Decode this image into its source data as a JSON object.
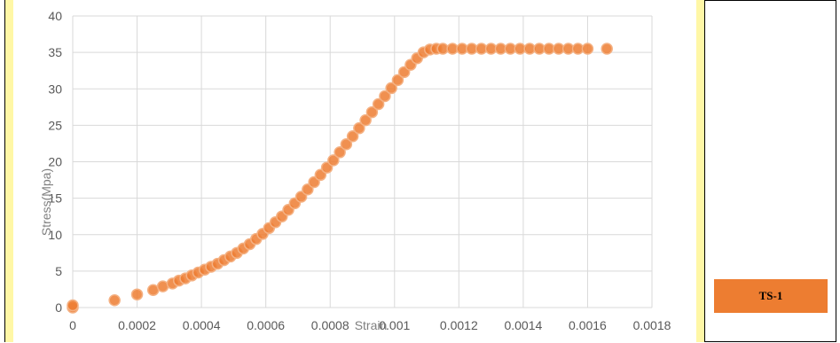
{
  "chart_data": {
    "type": "scatter",
    "xlabel": "Strain",
    "ylabel": "Stress(Mpa)",
    "xlim": [
      0,
      0.0018
    ],
    "ylim": [
      0,
      40
    ],
    "x_ticks": [
      "0",
      "0.0002",
      "0.0004",
      "0.0006",
      "0.0008",
      "0.001",
      "0.0012",
      "0.0014",
      "0.0016",
      "0.0018"
    ],
    "y_ticks": [
      "0",
      "5",
      "10",
      "15",
      "20",
      "25",
      "30",
      "35",
      "40"
    ],
    "grid": true,
    "marker_color": "#ed7d31",
    "series": [
      {
        "name": "TS-1",
        "points": [
          [
            0.0,
            0.0
          ],
          [
            0.0,
            0.3
          ],
          [
            0.00013,
            1.0
          ],
          [
            0.0002,
            1.8
          ],
          [
            0.00025,
            2.4
          ],
          [
            0.00028,
            2.9
          ],
          [
            0.00031,
            3.3
          ],
          [
            0.00033,
            3.7
          ],
          [
            0.00035,
            4.0
          ],
          [
            0.00037,
            4.4
          ],
          [
            0.00039,
            4.8
          ],
          [
            0.00041,
            5.2
          ],
          [
            0.00043,
            5.6
          ],
          [
            0.00045,
            6.0
          ],
          [
            0.00047,
            6.5
          ],
          [
            0.00049,
            7.0
          ],
          [
            0.00051,
            7.5
          ],
          [
            0.00053,
            8.1
          ],
          [
            0.00055,
            8.7
          ],
          [
            0.00057,
            9.4
          ],
          [
            0.00059,
            10.1
          ],
          [
            0.00061,
            10.9
          ],
          [
            0.00063,
            11.7
          ],
          [
            0.00065,
            12.5
          ],
          [
            0.00067,
            13.4
          ],
          [
            0.00069,
            14.3
          ],
          [
            0.00071,
            15.2
          ],
          [
            0.00073,
            16.2
          ],
          [
            0.00075,
            17.2
          ],
          [
            0.00077,
            18.2
          ],
          [
            0.00079,
            19.2
          ],
          [
            0.00081,
            20.2
          ],
          [
            0.00083,
            21.3
          ],
          [
            0.00085,
            22.4
          ],
          [
            0.00087,
            23.5
          ],
          [
            0.00089,
            24.6
          ],
          [
            0.00091,
            25.7
          ],
          [
            0.00093,
            26.8
          ],
          [
            0.00095,
            27.9
          ],
          [
            0.00097,
            29.0
          ],
          [
            0.00099,
            30.1
          ],
          [
            0.00101,
            31.2
          ],
          [
            0.00103,
            32.3
          ],
          [
            0.00105,
            33.3
          ],
          [
            0.00107,
            34.2
          ],
          [
            0.00109,
            35.0
          ],
          [
            0.00111,
            35.4
          ],
          [
            0.00113,
            35.5
          ],
          [
            0.00115,
            35.5
          ],
          [
            0.00118,
            35.5
          ],
          [
            0.00121,
            35.5
          ],
          [
            0.00124,
            35.5
          ],
          [
            0.00127,
            35.5
          ],
          [
            0.0013,
            35.5
          ],
          [
            0.00133,
            35.5
          ],
          [
            0.00136,
            35.5
          ],
          [
            0.00139,
            35.5
          ],
          [
            0.00142,
            35.5
          ],
          [
            0.00145,
            35.5
          ],
          [
            0.00148,
            35.5
          ],
          [
            0.00151,
            35.5
          ],
          [
            0.00154,
            35.5
          ],
          [
            0.00157,
            35.5
          ],
          [
            0.0016,
            35.5
          ],
          [
            0.00166,
            35.5
          ]
        ]
      }
    ]
  },
  "legend": {
    "label": "TS-1",
    "color": "#ed7d31"
  }
}
